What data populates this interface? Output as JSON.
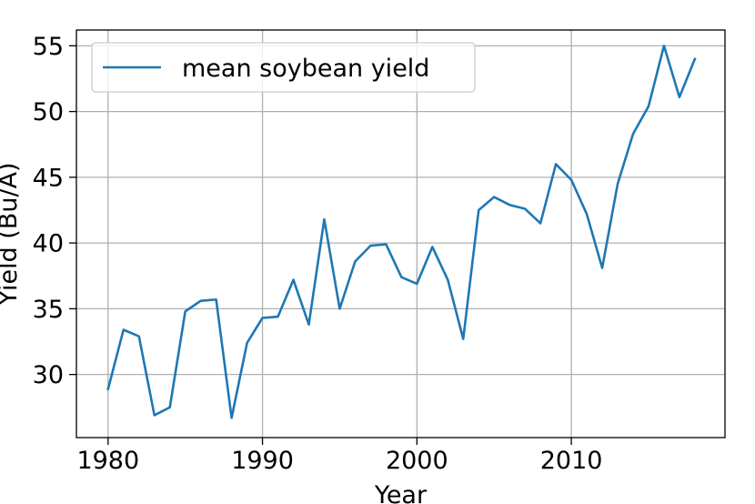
{
  "chart_data": {
    "type": "line",
    "title": "",
    "xlabel": "Year",
    "ylabel": "Yield (Bu/A)",
    "xlim": [
      1977.95,
      2019.95
    ],
    "ylim": [
      25.2,
      56.2
    ],
    "xticks": [
      1980,
      1990,
      2000,
      2010
    ],
    "yticks": [
      30,
      35,
      40,
      45,
      50,
      55
    ],
    "grid": true,
    "legend": {
      "position": "upper-left",
      "entries": [
        "mean soybean yield"
      ]
    },
    "series": [
      {
        "name": "mean soybean yield",
        "color": "#1f77b4",
        "x": [
          1980,
          1981,
          1982,
          1983,
          1984,
          1985,
          1986,
          1987,
          1988,
          1989,
          1990,
          1991,
          1992,
          1993,
          1994,
          1995,
          1996,
          1997,
          1998,
          1999,
          2000,
          2001,
          2002,
          2003,
          2004,
          2005,
          2006,
          2007,
          2008,
          2009,
          2010,
          2011,
          2012,
          2013,
          2014,
          2015,
          2016,
          2017,
          2018
        ],
        "y": [
          28.9,
          33.4,
          32.9,
          26.9,
          27.5,
          34.8,
          35.6,
          35.7,
          26.7,
          32.4,
          34.3,
          34.4,
          37.2,
          33.8,
          41.8,
          35.0,
          38.6,
          39.8,
          39.9,
          37.4,
          36.9,
          39.7,
          37.2,
          32.7,
          42.5,
          43.5,
          42.9,
          42.6,
          41.5,
          46.0,
          44.8,
          42.2,
          38.1,
          44.5,
          48.3,
          50.4,
          55.0,
          51.1,
          54.0
        ]
      }
    ]
  }
}
